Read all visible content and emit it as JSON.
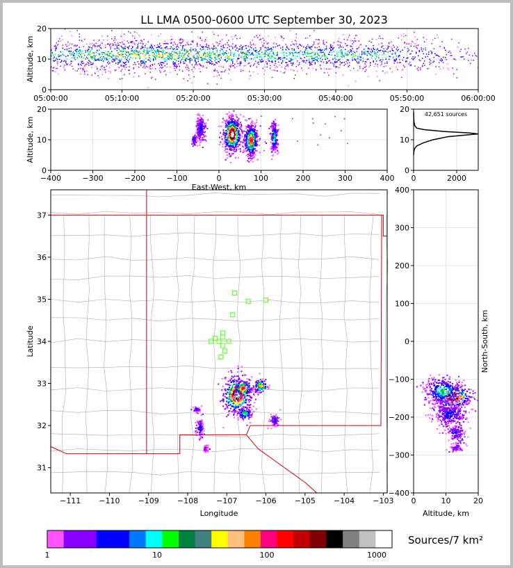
{
  "title": "LL LMA 0500-0600 UTC September 30, 2023",
  "colors": {
    "colorbar": [
      "#ff55ff",
      "#8800ff",
      "#8800ff",
      "#0000ff",
      "#0000ff",
      "#0077ff",
      "#00ffff",
      "#00ff00",
      "#008040",
      "#408080",
      "#ffff00",
      "#ffc080",
      "#ff8000",
      "#ff0080",
      "#ff0000",
      "#c00000",
      "#800000",
      "#000000",
      "#808080",
      "#c0c0c0",
      "#ffffff"
    ],
    "state_border": "#cc0000",
    "county": "#aaaaaa",
    "station": "#66ff33"
  },
  "chart_data": [
    {
      "id": "time-height",
      "type": "scatter",
      "ylabel": "Altitude, km",
      "xlim": [
        "05:00:00",
        "06:00:00"
      ],
      "ylim": [
        0,
        20
      ],
      "xticks": [
        "05:00:00",
        "05:10:00",
        "05:20:00",
        "05:30:00",
        "05:40:00",
        "05:50:00",
        "06:00:00"
      ],
      "yticks": [
        0,
        10,
        20
      ],
      "density_profile": {
        "minutes": [
          0,
          5,
          10,
          14,
          18,
          25,
          30,
          35,
          40,
          45,
          50,
          53,
          55,
          57,
          60
        ],
        "relative_density": [
          0.55,
          0.7,
          0.9,
          1.0,
          0.85,
          0.75,
          0.7,
          0.7,
          0.7,
          0.6,
          0.45,
          0.35,
          0.25,
          0.15,
          0.1
        ]
      },
      "core_altitude_km": [
        8,
        14
      ]
    },
    {
      "id": "east-west-altitude",
      "type": "scatter",
      "xlabel": "East-West, km",
      "ylabel": "Altitude, km",
      "xlim": [
        -400,
        400
      ],
      "ylim": [
        0,
        20
      ],
      "xticks": [
        -400,
        -300,
        -200,
        -100,
        0,
        100,
        200,
        300,
        400
      ],
      "yticks": [
        0,
        10,
        20
      ],
      "clusters": [
        {
          "x": 30,
          "alt": 12,
          "sx": 10,
          "sa": 2.8,
          "peak": "#ffffff"
        },
        {
          "x": 75,
          "alt": 10,
          "sx": 8,
          "sa": 2.6,
          "peak": "#ff0000"
        },
        {
          "x": 130,
          "alt": 11,
          "sx": 4,
          "sa": 2.5,
          "peak": "#00ff00"
        },
        {
          "x": -45,
          "alt": 14,
          "sx": 5,
          "sa": 2.2,
          "peak": "#0000ff"
        },
        {
          "x": -60,
          "alt": 10,
          "sx": 3,
          "sa": 1.0,
          "peak": "#0000ff"
        }
      ]
    },
    {
      "id": "altitude-histogram",
      "type": "line",
      "annotation": "42,651 sources",
      "xlim": [
        0,
        3000
      ],
      "ylim": [
        0,
        20
      ],
      "xticks": [
        0,
        2000
      ],
      "yticks": [
        0,
        10,
        20
      ],
      "x": [
        2,
        10,
        40,
        150,
        450,
        900,
        1600,
        2500,
        3000,
        2600,
        1400,
        500,
        150,
        60,
        25,
        10,
        3
      ],
      "y": [
        5,
        6,
        7,
        8,
        9,
        10,
        11,
        11.6,
        11.9,
        12.2,
        12.7,
        13.3,
        13.8,
        14.5,
        15.5,
        16.5,
        19
      ]
    },
    {
      "id": "plan-view",
      "type": "scatter",
      "xlabel": "Longitude",
      "ylabel": "Latitude",
      "xlim": [
        -111.5,
        -102.9
      ],
      "ylim": [
        30.4,
        37.6
      ],
      "xticks": [
        -111,
        -110,
        -109,
        -108,
        -107,
        -106,
        -105,
        -104,
        -103
      ],
      "yticks": [
        31,
        32,
        33,
        34,
        35,
        36,
        37
      ],
      "stations": [
        {
          "lon": -106.8,
          "lat": 35.15
        },
        {
          "lon": -106.45,
          "lat": 34.95
        },
        {
          "lon": -106.0,
          "lat": 34.98
        },
        {
          "lon": -106.85,
          "lat": 34.63
        },
        {
          "lon": -107.1,
          "lat": 34.2
        },
        {
          "lon": -107.3,
          "lat": 34.07
        },
        {
          "lon": -107.4,
          "lat": 34.0
        },
        {
          "lon": -107.2,
          "lat": 34.0
        },
        {
          "lon": -106.95,
          "lat": 34.0
        },
        {
          "lon": -107.1,
          "lat": 33.9
        },
        {
          "lon": -107.05,
          "lat": 33.77
        },
        {
          "lon": -107.15,
          "lat": 33.63
        },
        {
          "lon": -107.1,
          "lat": 34.1
        }
      ],
      "clusters": [
        {
          "lon": -106.75,
          "lat": 32.75,
          "sx": 0.18,
          "sy": 0.22,
          "peak": "#ffffff"
        },
        {
          "lon": -106.6,
          "lat": 32.9,
          "sx": 0.12,
          "sy": 0.1,
          "peak": "#ff0000"
        },
        {
          "lon": -106.15,
          "lat": 32.95,
          "sx": 0.1,
          "sy": 0.08,
          "peak": "#ff8000"
        },
        {
          "lon": -106.55,
          "lat": 32.3,
          "sx": 0.1,
          "sy": 0.08,
          "peak": "#00ff00"
        },
        {
          "lon": -107.7,
          "lat": 31.95,
          "sx": 0.05,
          "sy": 0.12,
          "peak": "#0000ff"
        },
        {
          "lon": -107.78,
          "lat": 32.4,
          "sx": 0.05,
          "sy": 0.04,
          "peak": "#0000ff"
        },
        {
          "lon": -105.8,
          "lat": 32.15,
          "sx": 0.06,
          "sy": 0.08,
          "peak": "#0000ff"
        },
        {
          "lon": -107.55,
          "lat": 31.45,
          "sx": 0.04,
          "sy": 0.04,
          "peak": "#8800ff"
        }
      ]
    },
    {
      "id": "altitude-north-south",
      "type": "scatter",
      "xlabel": "Altitude, km",
      "ylabel": "North-South, km",
      "xlim": [
        0,
        20
      ],
      "ylim": [
        -400,
        400
      ],
      "xticks": [
        0,
        10,
        20
      ],
      "yticks": [
        -400,
        -300,
        -200,
        -100,
        0,
        100,
        200,
        300,
        400
      ],
      "clusters": [
        {
          "alt": 12,
          "ns": -145,
          "sa": 2.8,
          "sn": 15,
          "peak": "#ffffff"
        },
        {
          "alt": 9,
          "ns": -130,
          "sa": 3.0,
          "sn": 18,
          "peak": "#00ff00"
        },
        {
          "alt": 11,
          "ns": -190,
          "sa": 2.8,
          "sn": 18,
          "peak": "#0000ff"
        },
        {
          "alt": 13,
          "ns": -240,
          "sa": 1.5,
          "sn": 10,
          "peak": "#0000ff"
        },
        {
          "alt": 13,
          "ns": -280,
          "sa": 1.0,
          "sn": 6,
          "peak": "#8800ff"
        }
      ]
    },
    {
      "id": "colorbar",
      "type": "heatmap",
      "label": "Sources/7 km²",
      "scale": "log",
      "range": [
        1,
        1000
      ],
      "ticks": [
        "1",
        "10",
        "100",
        "1000"
      ]
    }
  ]
}
